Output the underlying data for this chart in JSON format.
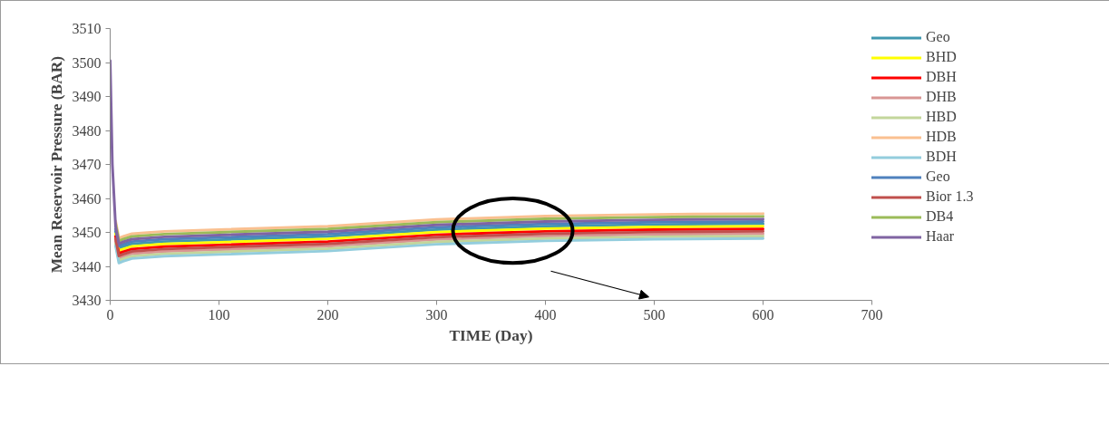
{
  "chart_data": {
    "type": "line",
    "xlabel": "TIME (Day)",
    "ylabel": "Mean Reservoir Pressure (BAR)",
    "x": [
      0,
      2,
      5,
      8,
      12,
      20,
      50,
      100,
      200,
      300,
      400,
      500,
      600
    ],
    "xlim": [
      0,
      700
    ],
    "xticks": [
      0,
      100,
      200,
      300,
      400,
      500,
      600,
      700
    ],
    "ylim": [
      3430,
      3510
    ],
    "yticks": [
      3430,
      3440,
      3450,
      3460,
      3470,
      3480,
      3490,
      3500,
      3510
    ],
    "grid": false,
    "legend": "right",
    "marker": "none",
    "line_style": "solid",
    "series": [
      {
        "name": "Geo",
        "color": "#4198af",
        "values": [
          null,
          null,
          3450.3,
          3445.3,
          3445.8,
          3446.6,
          3447.3,
          3447.8,
          3448.8,
          3450.8,
          3451.8,
          3452.3,
          3452.5
        ]
      },
      {
        "name": "BHD",
        "color": "#ffff00",
        "values": [
          null,
          null,
          3449.6,
          3444.6,
          3445.1,
          3445.9,
          3446.6,
          3447.1,
          3448.1,
          3450.1,
          3451.1,
          3451.6,
          3451.8
        ]
      },
      {
        "name": "DBH",
        "color": "#ff0000",
        "values": [
          null,
          null,
          3448.8,
          3443.8,
          3444.3,
          3445.1,
          3445.8,
          3446.3,
          3447.3,
          3449.3,
          3450.3,
          3450.8,
          3451
        ]
      },
      {
        "name": "DHB",
        "color": "#d99694",
        "values": [
          null,
          null,
          3447.4,
          3442.4,
          3442.9,
          3443.7,
          3444.4,
          3444.9,
          3445.9,
          3447.9,
          3448.9,
          3449.4,
          3449.6
        ]
      },
      {
        "name": "HBD",
        "color": "#c3d69b",
        "values": [
          null,
          null,
          3446.7,
          3441.7,
          3442.2,
          3443,
          3443.7,
          3444.2,
          3445.2,
          3447.2,
          3448.2,
          3448.7,
          3448.9
        ]
      },
      {
        "name": "HDB",
        "color": "#fac090",
        "values": [
          null,
          null,
          3453.3,
          3448.3,
          3448.8,
          3449.6,
          3450.3,
          3450.8,
          3451.8,
          3453.8,
          3454.8,
          3455.3,
          3455.5
        ]
      },
      {
        "name": "BDH",
        "color": "#93cddd",
        "values": [
          null,
          null,
          3446,
          3441,
          3441.5,
          3442.3,
          3443,
          3443.5,
          3444.5,
          3446.5,
          3447.5,
          3448,
          3448.2
        ]
      },
      {
        "name": "Geo",
        "color": "#4f81bd",
        "values": [
          null,
          null,
          3451,
          3446,
          3446.5,
          3447.3,
          3448,
          3448.5,
          3449.5,
          3451.5,
          3452.5,
          3453,
          3453.2
        ]
      },
      {
        "name": "Bior 1.3",
        "color": "#c0504d",
        "values": [
          null,
          null,
          3448.1,
          3443.1,
          3443.6,
          3444.4,
          3445.1,
          3445.6,
          3446.6,
          3448.6,
          3449.6,
          3450.1,
          3450.3
        ]
      },
      {
        "name": "DB4",
        "color": "#9bbb59",
        "values": [
          null,
          null,
          3452.5,
          3447.5,
          3448,
          3448.8,
          3449.5,
          3450,
          3451,
          3453,
          3454,
          3454.5,
          3454.7
        ]
      },
      {
        "name": "Haar",
        "color": "#8064a2",
        "values": [
          3500.5,
          3470,
          3451.7,
          3446.7,
          3447.2,
          3448,
          3448.7,
          3449.2,
          3450.2,
          3452.2,
          3453.2,
          3453.7,
          3453.9
        ]
      }
    ]
  }
}
